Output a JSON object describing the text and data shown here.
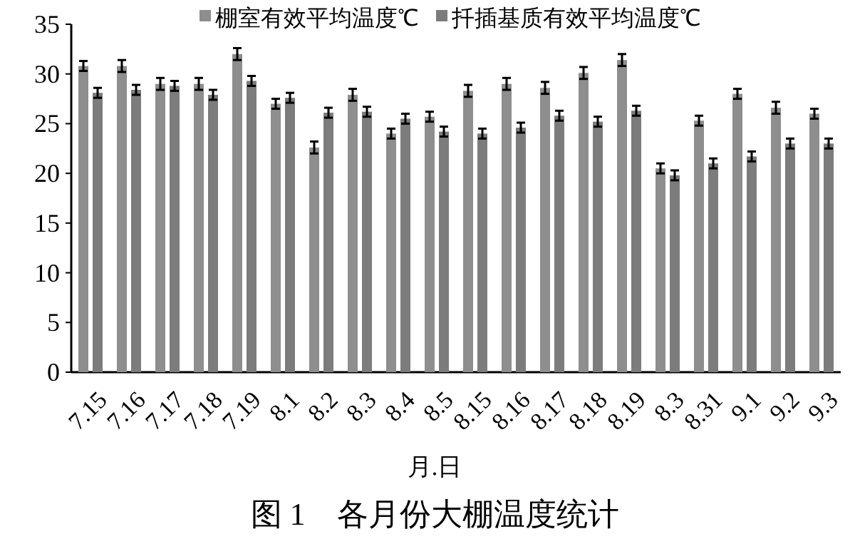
{
  "chart_data": {
    "type": "bar",
    "title": "图 1　各月份大棚温度统计",
    "xlabel": "月.日",
    "categories": [
      "7.15",
      "7.16",
      "7.17",
      "7.18",
      "7.19",
      "8.1",
      "8.2",
      "8.3",
      "8.4",
      "8.5",
      "8.15",
      "8.16",
      "8.17",
      "8.18",
      "8.19",
      "8.3",
      "8.31",
      "9.1",
      "9.2",
      "9.3"
    ],
    "series": [
      {
        "name": "棚室有效平均温度℃",
        "color": "#8e8e8e",
        "values": [
          30.8,
          30.8,
          29.0,
          29.0,
          32.0,
          27.0,
          22.6,
          27.9,
          24.0,
          25.7,
          28.3,
          29.0,
          28.6,
          30.1,
          31.4,
          20.5,
          25.3,
          28.0,
          26.6,
          26.0
        ],
        "errors": [
          0.5,
          0.6,
          0.6,
          0.6,
          0.6,
          0.5,
          0.6,
          0.6,
          0.5,
          0.5,
          0.6,
          0.6,
          0.6,
          0.6,
          0.6,
          0.5,
          0.5,
          0.5,
          0.6,
          0.5
        ]
      },
      {
        "name": "扦插基质有效平均温度℃",
        "color": "#7c7c7c",
        "values": [
          28.1,
          28.4,
          28.8,
          27.9,
          29.3,
          27.6,
          26.1,
          26.2,
          25.5,
          24.2,
          24.0,
          24.6,
          25.8,
          25.2,
          26.3,
          19.8,
          21.0,
          21.7,
          23.0,
          23.0
        ],
        "errors": [
          0.5,
          0.5,
          0.5,
          0.5,
          0.5,
          0.5,
          0.5,
          0.5,
          0.5,
          0.5,
          0.5,
          0.5,
          0.5,
          0.5,
          0.5,
          0.5,
          0.5,
          0.5,
          0.5,
          0.5
        ]
      }
    ],
    "ylim": [
      0,
      35
    ],
    "yticks": [
      0,
      5,
      10,
      15,
      20,
      25,
      30,
      35
    ],
    "legend": "top"
  }
}
